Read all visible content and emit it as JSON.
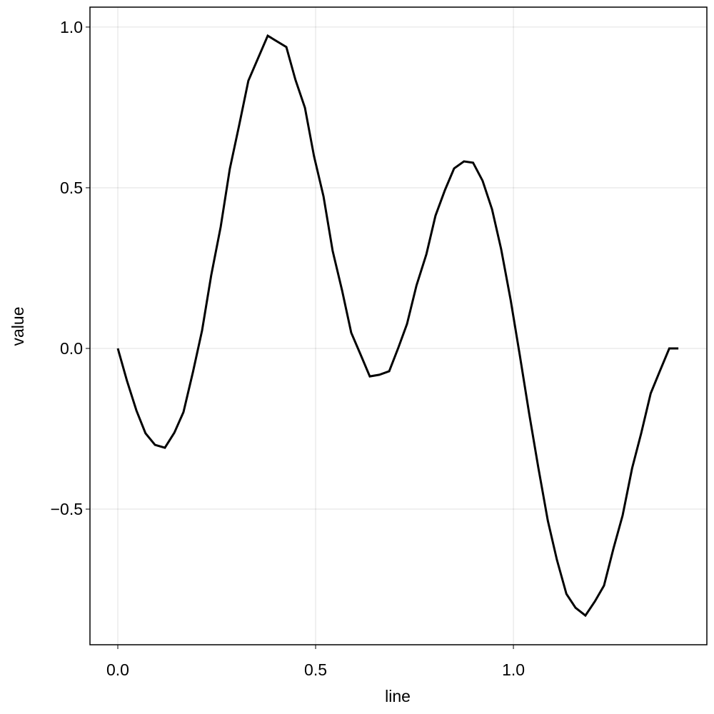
{
  "chart_data": {
    "type": "line",
    "x_label": "line",
    "y_label": "value",
    "x": [
      0,
      0.023,
      0.047,
      0.07,
      0.094,
      0.119,
      0.143,
      0.166,
      0.19,
      0.213,
      0.236,
      0.26,
      0.283,
      0.307,
      0.33,
      0.379,
      0.426,
      0.449,
      0.473,
      0.496,
      0.52,
      0.543,
      0.567,
      0.59,
      0.614,
      0.637,
      0.661,
      0.686,
      0.709,
      0.731,
      0.755,
      0.78,
      0.803,
      0.827,
      0.85,
      0.875,
      0.898,
      0.922,
      0.946,
      0.969,
      0.993,
      1.016,
      1.04,
      1.063,
      1.087,
      1.11,
      1.134,
      1.157,
      1.182,
      1.206,
      1.229,
      1.253,
      1.276,
      1.3,
      1.323,
      1.347,
      1.37,
      1.394,
      1.417
    ],
    "series": [
      {
        "color": "#000000",
        "values": [
          0,
          -0.1,
          -0.193,
          -0.264,
          -0.3,
          -0.309,
          -0.262,
          -0.198,
          -0.073,
          0.056,
          0.227,
          0.378,
          0.558,
          0.696,
          0.833,
          0.973,
          0.938,
          0.836,
          0.749,
          0.598,
          0.473,
          0.304,
          0.18,
          0.049,
          -0.02,
          -0.087,
          -0.082,
          -0.071,
          0.002,
          0.076,
          0.196,
          0.293,
          0.413,
          0.493,
          0.56,
          0.582,
          0.578,
          0.522,
          0.433,
          0.309,
          0.151,
          -0.02,
          -0.204,
          -0.371,
          -0.536,
          -0.658,
          -0.764,
          -0.807,
          -0.831,
          -0.787,
          -0.738,
          -0.622,
          -0.52,
          -0.373,
          -0.264,
          -0.14,
          -0.071,
          0,
          0
        ]
      }
    ],
    "xlim": [
      -0.0704,
      1.489
    ],
    "ylim": [
      -0.922,
      1.062
    ],
    "xticks": [
      {
        "value": 0,
        "label": "0.0"
      },
      {
        "value": 0.5,
        "label": "0.5"
      },
      {
        "value": 1,
        "label": "1.0"
      }
    ],
    "yticks": [
      {
        "value": -0.5,
        "label": "−0.5"
      },
      {
        "value": 0,
        "label": "0.0"
      },
      {
        "value": 0.5,
        "label": "0.5"
      },
      {
        "value": 1,
        "label": "1.0"
      }
    ],
    "grid": true
  }
}
